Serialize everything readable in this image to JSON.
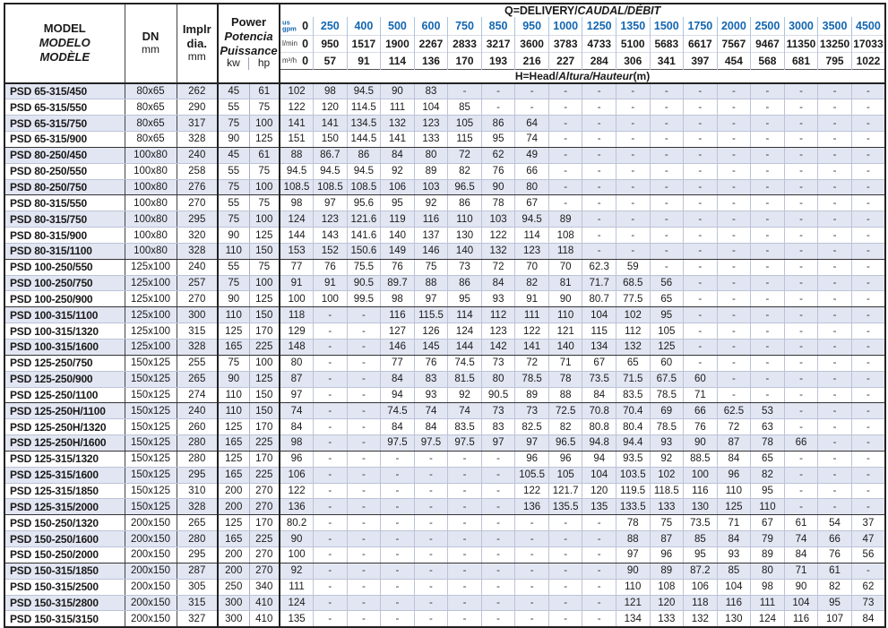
{
  "colors": {
    "accent_blue": "#1366b1",
    "row_shade": "#e2e6f2",
    "grid_line": "#bcc3d6",
    "dark_border": "#222222"
  },
  "table": {
    "header": {
      "model_lines": [
        "MODEL",
        "MODELO",
        "MODÈLE"
      ],
      "dn_label": "DN",
      "impeller_lines": [
        "Implr",
        "dia."
      ],
      "power_lines": [
        "Power",
        "Potencia",
        "Puissance"
      ],
      "unit_mm": "mm",
      "kw_label": "kw",
      "hp_label": "hp",
      "q_title_en": "Q=DELIVERY/",
      "q_title_intl": "CAUDAL/DÉBIT",
      "h_title_en": "H=Head/",
      "h_title_intl": "Altura/Hauteur",
      "h_title_unit": "(m)",
      "flow_rows": [
        {
          "name": "us-gpm",
          "label_lines": [
            "us",
            "gpm"
          ],
          "zero": "0",
          "values": [
            "250",
            "400",
            "500",
            "600",
            "750",
            "850",
            "950",
            "1000",
            "1250",
            "1350",
            "1500",
            "1750",
            "2000",
            "2500",
            "3000",
            "3500",
            "4500"
          ]
        },
        {
          "name": "l-min",
          "label": "l/min",
          "zero": "0",
          "values": [
            "950",
            "1517",
            "1900",
            "2267",
            "2833",
            "3217",
            "3600",
            "3783",
            "4733",
            "5100",
            "5683",
            "6617",
            "7567",
            "9467",
            "11350",
            "13250",
            "17033"
          ]
        },
        {
          "name": "m3-h",
          "label": "m³/h",
          "zero": "0",
          "values": [
            "57",
            "91",
            "114",
            "136",
            "170",
            "193",
            "216",
            "227",
            "284",
            "306",
            "341",
            "397",
            "454",
            "568",
            "681",
            "795",
            "1022"
          ]
        }
      ]
    },
    "rows": [
      {
        "model": "PSD 65-315/450",
        "dn": "80x65",
        "dia": "262",
        "kw": "45",
        "hp": "61",
        "values": [
          "102",
          "98",
          "94.5",
          "90",
          "83",
          "-",
          "-",
          "-",
          "-",
          "-",
          "-",
          "-",
          "-",
          "-",
          "-",
          "-",
          "-",
          "-"
        ],
        "group_end": false
      },
      {
        "model": "PSD 65-315/550",
        "dn": "80x65",
        "dia": "290",
        "kw": "55",
        "hp": "75",
        "values": [
          "122",
          "120",
          "114.5",
          "111",
          "104",
          "85",
          "-",
          "-",
          "-",
          "-",
          "-",
          "-",
          "-",
          "-",
          "-",
          "-",
          "-",
          "-"
        ],
        "group_end": false
      },
      {
        "model": "PSD 65-315/750",
        "dn": "80x65",
        "dia": "317",
        "kw": "75",
        "hp": "100",
        "values": [
          "141",
          "141",
          "134.5",
          "132",
          "123",
          "105",
          "86",
          "64",
          "-",
          "-",
          "-",
          "-",
          "-",
          "-",
          "-",
          "-",
          "-",
          "-"
        ],
        "group_end": false
      },
      {
        "model": "PSD 65-315/900",
        "dn": "80x65",
        "dia": "328",
        "kw": "90",
        "hp": "125",
        "values": [
          "151",
          "150",
          "144.5",
          "141",
          "133",
          "115",
          "95",
          "74",
          "-",
          "-",
          "-",
          "-",
          "-",
          "-",
          "-",
          "-",
          "-",
          "-"
        ],
        "group_end": true
      },
      {
        "model": "PSD 80-250/450",
        "dn": "100x80",
        "dia": "240",
        "kw": "45",
        "hp": "61",
        "values": [
          "88",
          "86.7",
          "86",
          "84",
          "80",
          "72",
          "62",
          "49",
          "-",
          "-",
          "-",
          "-",
          "-",
          "-",
          "-",
          "-",
          "-",
          "-"
        ],
        "group_end": false
      },
      {
        "model": "PSD 80-250/550",
        "dn": "100x80",
        "dia": "258",
        "kw": "55",
        "hp": "75",
        "values": [
          "94.5",
          "94.5",
          "94.5",
          "92",
          "89",
          "82",
          "76",
          "66",
          "-",
          "-",
          "-",
          "-",
          "-",
          "-",
          "-",
          "-",
          "-",
          "-"
        ],
        "group_end": false
      },
      {
        "model": "PSD 80-250/750",
        "dn": "100x80",
        "dia": "276",
        "kw": "75",
        "hp": "100",
        "values": [
          "108.5",
          "108.5",
          "108.5",
          "106",
          "103",
          "96.5",
          "90",
          "80",
          "-",
          "-",
          "-",
          "-",
          "-",
          "-",
          "-",
          "-",
          "-",
          "-"
        ],
        "group_end": true
      },
      {
        "model": "PSD 80-315/550",
        "dn": "100x80",
        "dia": "270",
        "kw": "55",
        "hp": "75",
        "values": [
          "98",
          "97",
          "95.6",
          "95",
          "92",
          "86",
          "78",
          "67",
          "-",
          "-",
          "-",
          "-",
          "-",
          "-",
          "-",
          "-",
          "-",
          "-"
        ],
        "group_end": false
      },
      {
        "model": "PSD 80-315/750",
        "dn": "100x80",
        "dia": "295",
        "kw": "75",
        "hp": "100",
        "values": [
          "124",
          "123",
          "121.6",
          "119",
          "116",
          "110",
          "103",
          "94.5",
          "89",
          "-",
          "-",
          "-",
          "-",
          "-",
          "-",
          "-",
          "-",
          "-"
        ],
        "group_end": false
      },
      {
        "model": "PSD 80-315/900",
        "dn": "100x80",
        "dia": "320",
        "kw": "90",
        "hp": "125",
        "values": [
          "144",
          "143",
          "141.6",
          "140",
          "137",
          "130",
          "122",
          "114",
          "108",
          "-",
          "-",
          "-",
          "-",
          "-",
          "-",
          "-",
          "-",
          "-"
        ],
        "group_end": false
      },
      {
        "model": "PSD 80-315/1100",
        "dn": "100x80",
        "dia": "328",
        "kw": "110",
        "hp": "150",
        "values": [
          "153",
          "152",
          "150.6",
          "149",
          "146",
          "140",
          "132",
          "123",
          "118",
          "-",
          "-",
          "-",
          "-",
          "-",
          "-",
          "-",
          "-",
          "-"
        ],
        "group_end": true
      },
      {
        "model": "PSD 100-250/550",
        "dn": "125x100",
        "dia": "240",
        "kw": "55",
        "hp": "75",
        "values": [
          "77",
          "76",
          "75.5",
          "76",
          "75",
          "73",
          "72",
          "70",
          "70",
          "62.3",
          "59",
          "-",
          "-",
          "-",
          "-",
          "-",
          "-",
          "-"
        ],
        "group_end": false
      },
      {
        "model": "PSD 100-250/750",
        "dn": "125x100",
        "dia": "257",
        "kw": "75",
        "hp": "100",
        "values": [
          "91",
          "91",
          "90.5",
          "89.7",
          "88",
          "86",
          "84",
          "82",
          "81",
          "71.7",
          "68.5",
          "56",
          "-",
          "-",
          "-",
          "-",
          "-",
          "-"
        ],
        "group_end": false
      },
      {
        "model": "PSD 100-250/900",
        "dn": "125x100",
        "dia": "270",
        "kw": "90",
        "hp": "125",
        "values": [
          "100",
          "100",
          "99.5",
          "98",
          "97",
          "95",
          "93",
          "91",
          "90",
          "80.7",
          "77.5",
          "65",
          "-",
          "-",
          "-",
          "-",
          "-",
          "-"
        ],
        "group_end": true
      },
      {
        "model": "PSD 100-315/1100",
        "dn": "125x100",
        "dia": "300",
        "kw": "110",
        "hp": "150",
        "values": [
          "118",
          "-",
          "-",
          "116",
          "115.5",
          "114",
          "112",
          "111",
          "110",
          "104",
          "102",
          "95",
          "-",
          "-",
          "-",
          "-",
          "-",
          "-"
        ],
        "group_end": false
      },
      {
        "model": "PSD 100-315/1320",
        "dn": "125x100",
        "dia": "315",
        "kw": "125",
        "hp": "170",
        "values": [
          "129",
          "-",
          "-",
          "127",
          "126",
          "124",
          "123",
          "122",
          "121",
          "115",
          "112",
          "105",
          "-",
          "-",
          "-",
          "-",
          "-",
          "-"
        ],
        "group_end": false
      },
      {
        "model": "PSD 100-315/1600",
        "dn": "125x100",
        "dia": "328",
        "kw": "165",
        "hp": "225",
        "values": [
          "148",
          "-",
          "-",
          "146",
          "145",
          "144",
          "142",
          "141",
          "140",
          "134",
          "132",
          "125",
          "-",
          "-",
          "-",
          "-",
          "-",
          "-"
        ],
        "group_end": true
      },
      {
        "model": "PSD 125-250/750",
        "dn": "150x125",
        "dia": "255",
        "kw": "75",
        "hp": "100",
        "values": [
          "80",
          "-",
          "-",
          "77",
          "76",
          "74.5",
          "73",
          "72",
          "71",
          "67",
          "65",
          "60",
          "-",
          "-",
          "-",
          "-",
          "-",
          "-"
        ],
        "group_end": false
      },
      {
        "model": "PSD 125-250/900",
        "dn": "150x125",
        "dia": "265",
        "kw": "90",
        "hp": "125",
        "values": [
          "87",
          "-",
          "-",
          "84",
          "83",
          "81.5",
          "80",
          "78.5",
          "78",
          "73.5",
          "71.5",
          "67.5",
          "60",
          "-",
          "-",
          "-",
          "-",
          "-"
        ],
        "group_end": false
      },
      {
        "model": "PSD 125-250/1100",
        "dn": "150x125",
        "dia": "274",
        "kw": "110",
        "hp": "150",
        "values": [
          "97",
          "-",
          "-",
          "94",
          "93",
          "92",
          "90.5",
          "89",
          "88",
          "84",
          "83.5",
          "78.5",
          "71",
          "-",
          "-",
          "-",
          "-",
          "-"
        ],
        "group_end": true
      },
      {
        "model": "PSD 125-250H/1100",
        "dn": "150x125",
        "dia": "240",
        "kw": "110",
        "hp": "150",
        "values": [
          "74",
          "-",
          "-",
          "74.5",
          "74",
          "74",
          "73",
          "73",
          "72.5",
          "70.8",
          "70.4",
          "69",
          "66",
          "62.5",
          "53",
          "-",
          "-",
          "-"
        ],
        "group_end": false
      },
      {
        "model": "PSD 125-250H/1320",
        "dn": "150x125",
        "dia": "260",
        "kw": "125",
        "hp": "170",
        "values": [
          "84",
          "-",
          "-",
          "84",
          "84",
          "83.5",
          "83",
          "82.5",
          "82",
          "80.8",
          "80.4",
          "78.5",
          "76",
          "72",
          "63",
          "-",
          "-",
          "-"
        ],
        "group_end": false
      },
      {
        "model": "PSD 125-250H/1600",
        "dn": "150x125",
        "dia": "280",
        "kw": "165",
        "hp": "225",
        "values": [
          "98",
          "-",
          "-",
          "97.5",
          "97.5",
          "97.5",
          "97",
          "97",
          "96.5",
          "94.8",
          "94.4",
          "93",
          "90",
          "87",
          "78",
          "66",
          "-",
          "-"
        ],
        "group_end": true
      },
      {
        "model": "PSD 125-315/1320",
        "dn": "150x125",
        "dia": "280",
        "kw": "125",
        "hp": "170",
        "values": [
          "96",
          "-",
          "-",
          "-",
          "-",
          "-",
          "-",
          "96",
          "96",
          "94",
          "93.5",
          "92",
          "88.5",
          "84",
          "65",
          "-",
          "-",
          "-"
        ],
        "group_end": false
      },
      {
        "model": "PSD 125-315/1600",
        "dn": "150x125",
        "dia": "295",
        "kw": "165",
        "hp": "225",
        "values": [
          "106",
          "-",
          "-",
          "-",
          "-",
          "-",
          "-",
          "105.5",
          "105",
          "104",
          "103.5",
          "102",
          "100",
          "96",
          "82",
          "-",
          "-",
          "-"
        ],
        "group_end": false
      },
      {
        "model": "PSD 125-315/1850",
        "dn": "150x125",
        "dia": "310",
        "kw": "200",
        "hp": "270",
        "values": [
          "122",
          "-",
          "-",
          "-",
          "-",
          "-",
          "-",
          "122",
          "121.7",
          "120",
          "119.5",
          "118.5",
          "116",
          "110",
          "95",
          "-",
          "-",
          "-"
        ],
        "group_end": false
      },
      {
        "model": "PSD 125-315/2000",
        "dn": "150x125",
        "dia": "328",
        "kw": "200",
        "hp": "270",
        "values": [
          "136",
          "-",
          "-",
          "-",
          "-",
          "-",
          "-",
          "136",
          "135.5",
          "135",
          "133.5",
          "133",
          "130",
          "125",
          "110",
          "-",
          "-",
          "-"
        ],
        "group_end": true
      },
      {
        "model": "PSD 150-250/1320",
        "dn": "200x150",
        "dia": "265",
        "kw": "125",
        "hp": "170",
        "values": [
          "80.2",
          "-",
          "-",
          "-",
          "-",
          "-",
          "-",
          "-",
          "-",
          "-",
          "78",
          "75",
          "73.5",
          "71",
          "67",
          "61",
          "54",
          "37"
        ],
        "group_end": false
      },
      {
        "model": "PSD 150-250/1600",
        "dn": "200x150",
        "dia": "280",
        "kw": "165",
        "hp": "225",
        "values": [
          "90",
          "-",
          "-",
          "-",
          "-",
          "-",
          "-",
          "-",
          "-",
          "-",
          "88",
          "87",
          "85",
          "84",
          "79",
          "74",
          "66",
          "47"
        ],
        "group_end": false
      },
      {
        "model": "PSD 150-250/2000",
        "dn": "200x150",
        "dia": "295",
        "kw": "200",
        "hp": "270",
        "values": [
          "100",
          "-",
          "-",
          "-",
          "-",
          "-",
          "-",
          "-",
          "-",
          "-",
          "97",
          "96",
          "95",
          "93",
          "89",
          "84",
          "76",
          "56"
        ],
        "group_end": true
      },
      {
        "model": "PSD 150-315/1850",
        "dn": "200x150",
        "dia": "287",
        "kw": "200",
        "hp": "270",
        "values": [
          "92",
          "-",
          "-",
          "-",
          "-",
          "-",
          "-",
          "-",
          "-",
          "-",
          "90",
          "89",
          "87.2",
          "85",
          "80",
          "71",
          "61",
          "-"
        ],
        "group_end": false
      },
      {
        "model": "PSD 150-315/2500",
        "dn": "200x150",
        "dia": "305",
        "kw": "250",
        "hp": "340",
        "values": [
          "111",
          "-",
          "-",
          "-",
          "-",
          "-",
          "-",
          "-",
          "-",
          "-",
          "110",
          "108",
          "106",
          "104",
          "98",
          "90",
          "82",
          "62"
        ],
        "group_end": false
      },
      {
        "model": "PSD 150-315/2800",
        "dn": "200x150",
        "dia": "315",
        "kw": "300",
        "hp": "410",
        "values": [
          "124",
          "-",
          "-",
          "-",
          "-",
          "-",
          "-",
          "-",
          "-",
          "-",
          "121",
          "120",
          "118",
          "116",
          "111",
          "104",
          "95",
          "73"
        ],
        "group_end": false
      },
      {
        "model": "PSD 150-315/3150",
        "dn": "200x150",
        "dia": "327",
        "kw": "300",
        "hp": "410",
        "values": [
          "135",
          "-",
          "-",
          "-",
          "-",
          "-",
          "-",
          "-",
          "-",
          "-",
          "134",
          "133",
          "132",
          "130",
          "124",
          "116",
          "107",
          "84"
        ],
        "group_end": false
      }
    ]
  }
}
